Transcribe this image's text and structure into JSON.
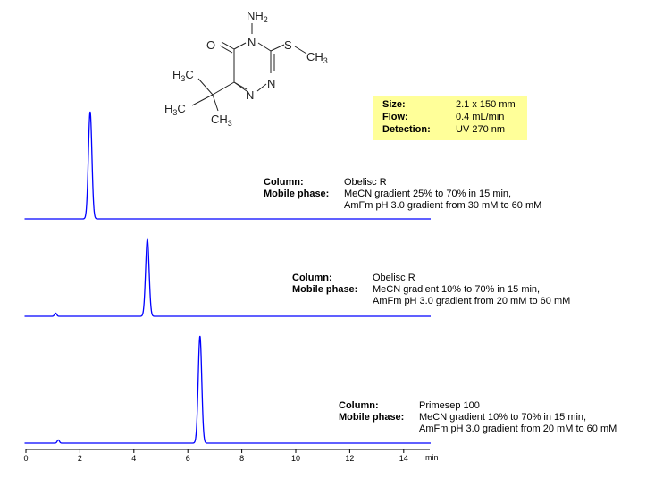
{
  "structure": {
    "atoms": {
      "nh2": "NH",
      "o": "O",
      "n4": "N",
      "s": "S",
      "ch3": "CH",
      "n2": "N",
      "n1": "N",
      "h3c_a": "H",
      "h3c_b": "H",
      "ch3_b": "CH",
      "c": "C",
      "sub3": "3",
      "sub2": "2"
    }
  },
  "conditions_box": {
    "color": "#ffff99",
    "rows": [
      {
        "label": "Size:",
        "value": "2.1 x 150 mm"
      },
      {
        "label": "Flow:",
        "value": "0.4 mL/min"
      },
      {
        "label": "Detection:",
        "value": "UV 270 nm"
      }
    ]
  },
  "chromatograms": [
    {
      "column_label": "Column:",
      "column": "Obelisc R",
      "mobile_label": "Mobile phase:",
      "mobile_1": "MeCN gradient 25% to 70% in 15 min,",
      "mobile_2": "AmFm pH 3.0 gradient from 30 mM to 60 mM"
    },
    {
      "column_label": "Column:",
      "column": "Obelisc R",
      "mobile_label": "Mobile phase:",
      "mobile_1": "MeCN gradient 10% to 70% in 15 min,",
      "mobile_2": "AmFm pH 3.0 gradient from 20 mM to 60 mM"
    },
    {
      "column_label": "Column:",
      "column": "Primesep 100",
      "mobile_label": "Mobile phase:",
      "mobile_1": "MeCN gradient 10% to 70% in 15 min,",
      "mobile_2": "AmFm pH 3.0 gradient from 20 mM to 60 mM"
    }
  ],
  "chart_data": {
    "type": "line",
    "xlabel": "min",
    "xlim": [
      0,
      15
    ],
    "xticks": [
      "0",
      "2",
      "4",
      "6",
      "8",
      "10",
      "12",
      "14"
    ],
    "grid": false,
    "line_color": "#0000ff",
    "series": [
      {
        "peaks": [
          {
            "rt": 2.38,
            "height": 1.0
          }
        ]
      },
      {
        "peaks": [
          {
            "rt": 1.1,
            "height": 0.03
          },
          {
            "rt": 4.5,
            "height": 0.72
          }
        ]
      },
      {
        "peaks": [
          {
            "rt": 1.2,
            "height": 0.03
          },
          {
            "rt": 6.45,
            "height": 1.0
          }
        ]
      }
    ]
  }
}
